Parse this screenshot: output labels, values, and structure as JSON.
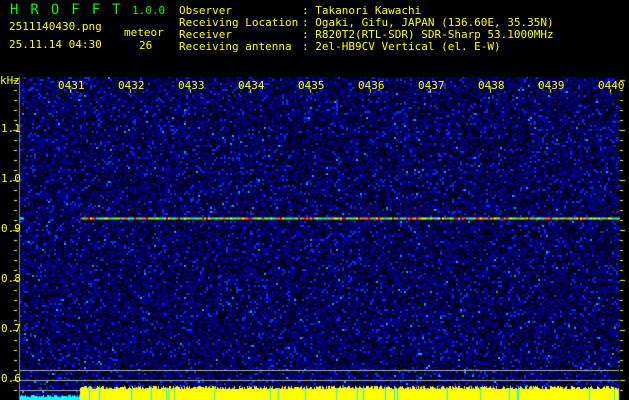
{
  "header": {
    "app_name": "HROFFT",
    "version": "1.0.0",
    "filename": "2511140430.png",
    "datetime": "25.11.14 04:30",
    "meteor_label": "meteor",
    "meteor_count": "26"
  },
  "info": [
    {
      "label": "Observer",
      "value": ": Takanori Kawachi"
    },
    {
      "label": "Receiving Location",
      "value": ": Ogaki, Gifu, JAPAN (136.60E, 35.35N)"
    },
    {
      "label": "Receiver",
      "value": ": R820T2(RTL-SDR) SDR-Sharp 53.1000MHz"
    },
    {
      "label": "Receiving antenna",
      "value": ": 2el-HB9CV Vertical (el. E-W)"
    }
  ],
  "spectrogram": {
    "unit_label": "kHz",
    "time_labels": [
      "0431",
      "0432",
      "0433",
      "0434",
      "0435",
      "0436",
      "0437",
      "0438",
      "0439",
      "0440"
    ],
    "freq_labels": [
      "1.1",
      "1.0",
      "0.9",
      "0.8",
      "0.7",
      "0.6"
    ],
    "carrier_khz": 0.925,
    "colors": {
      "text": "#ffff00",
      "brand": "#00ff00",
      "signal_level": "#ffff00",
      "low_level": "#00ffff"
    }
  }
}
